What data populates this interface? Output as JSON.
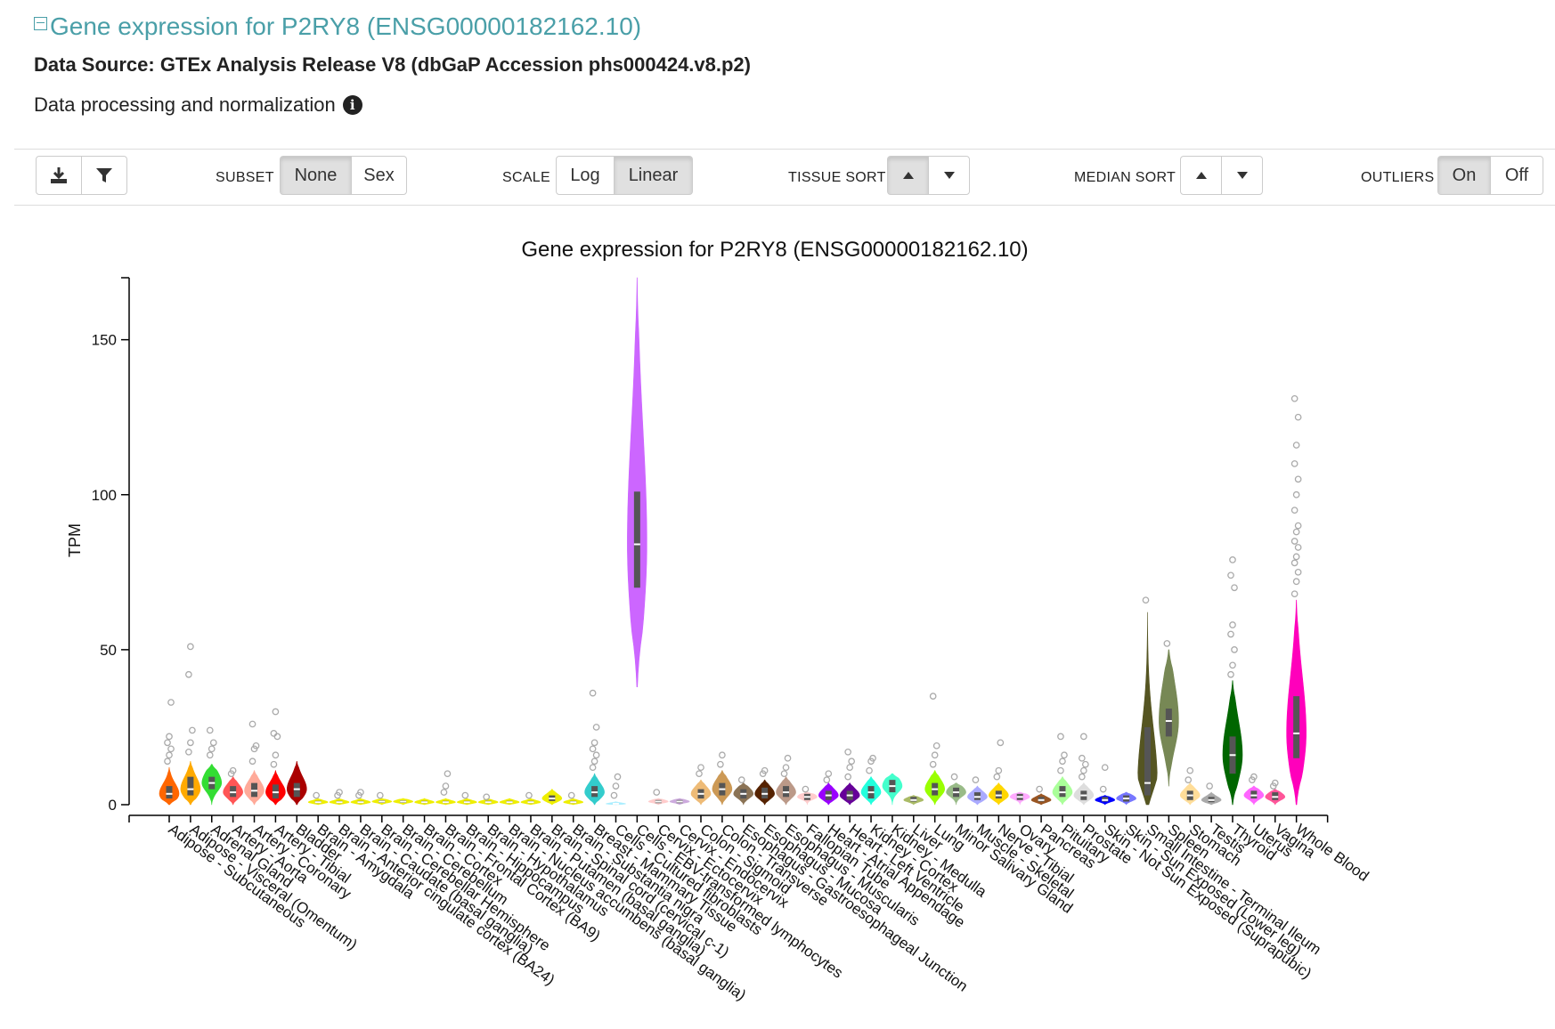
{
  "header": {
    "title": "Gene expression for P2RY8 (ENSG00000182162.10)",
    "source": "Data Source: GTEx Analysis Release V8 (dbGaP Accession phs000424.v8.p2)",
    "processing_label": "Data processing and normalization"
  },
  "toolbar": {
    "subset_label": "SUBSET",
    "subset_options": [
      "None",
      "Sex"
    ],
    "scale_label": "SCALE",
    "scale_options": [
      "Log",
      "Linear"
    ],
    "tissue_sort_label": "TISSUE SORT",
    "median_sort_label": "MEDIAN SORT",
    "outliers_label": "OUTLIERS",
    "outliers_options": [
      "On",
      "Off"
    ]
  },
  "chart_data": {
    "type": "violin",
    "title": "Gene expression for P2RY8 (ENSG00000182162.10)",
    "ylabel": "TPM",
    "ylim": [
      0,
      170
    ],
    "yticks": [
      0,
      50,
      100,
      150
    ],
    "grid": false,
    "series": [
      {
        "tissue": "Adipose - Subcutaneous",
        "color": "#FF6600",
        "median": 3.5,
        "q1": 2,
        "q3": 6,
        "max": 12,
        "outliers": [
          14,
          16,
          18,
          20,
          22,
          33
        ]
      },
      {
        "tissue": "Adipose - Visceral (Omentum)",
        "color": "#FFAA00",
        "median": 5,
        "q1": 3,
        "q3": 9,
        "max": 14,
        "outliers": [
          17,
          20,
          24,
          42,
          51
        ]
      },
      {
        "tissue": "Adrenal Gland",
        "color": "#33DD33",
        "median": 7,
        "q1": 5,
        "q3": 9,
        "max": 13,
        "outliers": [
          16,
          18,
          20,
          24
        ]
      },
      {
        "tissue": "Artery - Aorta",
        "color": "#FF5555",
        "median": 4,
        "q1": 2.5,
        "q3": 6,
        "max": 9,
        "outliers": [
          10,
          11
        ]
      },
      {
        "tissue": "Artery - Coronary",
        "color": "#FFAA99",
        "median": 4.5,
        "q1": 2.5,
        "q3": 7,
        "max": 11,
        "outliers": [
          14,
          18,
          19,
          26
        ]
      },
      {
        "tissue": "Artery - Tibial",
        "color": "#FF0000",
        "median": 4,
        "q1": 2,
        "q3": 6.5,
        "max": 11,
        "outliers": [
          13,
          16,
          22,
          23,
          30
        ]
      },
      {
        "tissue": "Bladder",
        "color": "#AA0000",
        "median": 5,
        "q1": 2.5,
        "q3": 7,
        "max": 14,
        "outliers": []
      },
      {
        "tissue": "Brain - Amygdala",
        "color": "#EEEE00",
        "median": 0.8,
        "q1": 0.5,
        "q3": 1.2,
        "max": 2,
        "outliers": [
          3
        ]
      },
      {
        "tissue": "Brain - Anterior cingulate cortex (BA24)",
        "color": "#EEEE00",
        "median": 0.8,
        "q1": 0.5,
        "q3": 1.2,
        "max": 2,
        "outliers": [
          3,
          4
        ]
      },
      {
        "tissue": "Brain - Caudate (basal ganglia)",
        "color": "#EEEE00",
        "median": 0.8,
        "q1": 0.5,
        "q3": 1.2,
        "max": 2,
        "outliers": [
          3,
          4
        ]
      },
      {
        "tissue": "Brain - Cerebellar Hemisphere",
        "color": "#EEEE00",
        "median": 1,
        "q1": 0.6,
        "q3": 1.4,
        "max": 2,
        "outliers": [
          3
        ]
      },
      {
        "tissue": "Brain - Cerebellum",
        "color": "#EEEE00",
        "median": 1,
        "q1": 0.6,
        "q3": 1.4,
        "max": 2,
        "outliers": []
      },
      {
        "tissue": "Brain - Cortex",
        "color": "#EEEE00",
        "median": 0.8,
        "q1": 0.5,
        "q3": 1.2,
        "max": 2,
        "outliers": []
      },
      {
        "tissue": "Brain - Frontal Cortex (BA9)",
        "color": "#EEEE00",
        "median": 0.8,
        "q1": 0.5,
        "q3": 1.2,
        "max": 2,
        "outliers": [
          4,
          6,
          10
        ]
      },
      {
        "tissue": "Brain - Hippocampus",
        "color": "#EEEE00",
        "median": 0.8,
        "q1": 0.5,
        "q3": 1.2,
        "max": 2,
        "outliers": [
          3
        ]
      },
      {
        "tissue": "Brain - Hypothalamus",
        "color": "#EEEE00",
        "median": 0.8,
        "q1": 0.5,
        "q3": 1.2,
        "max": 2,
        "outliers": [
          2.5
        ]
      },
      {
        "tissue": "Brain - Nucleus accumbens (basal ganglia)",
        "color": "#EEEE00",
        "median": 0.8,
        "q1": 0.5,
        "q3": 1.2,
        "max": 2,
        "outliers": []
      },
      {
        "tissue": "Brain - Putamen (basal ganglia)",
        "color": "#EEEE00",
        "median": 0.8,
        "q1": 0.5,
        "q3": 1.2,
        "max": 2,
        "outliers": [
          3
        ]
      },
      {
        "tissue": "Brain - Spinal cord (cervical c-1)",
        "color": "#EEEE00",
        "median": 2,
        "q1": 1.2,
        "q3": 3,
        "max": 5,
        "outliers": []
      },
      {
        "tissue": "Brain - Substantia nigra",
        "color": "#EEEE00",
        "median": 0.8,
        "q1": 0.5,
        "q3": 1.2,
        "max": 2,
        "outliers": [
          3
        ]
      },
      {
        "tissue": "Breast - Mammary Tissue",
        "color": "#33CCCC",
        "median": 4,
        "q1": 2.5,
        "q3": 6,
        "max": 10,
        "outliers": [
          12,
          14,
          16,
          18,
          20,
          25,
          36
        ]
      },
      {
        "tissue": "Cells - Cultured fibroblasts",
        "color": "#AAEEFF",
        "median": 0.3,
        "q1": 0.2,
        "q3": 0.5,
        "max": 1,
        "outliers": [
          3,
          6,
          9
        ]
      },
      {
        "tissue": "Cells - EBV-transformed lymphocytes",
        "color": "#CC66FF",
        "median": 84,
        "q1": 70,
        "q3": 101,
        "max": 170,
        "min": 38,
        "outliers": []
      },
      {
        "tissue": "Cervix - Ectocervix",
        "color": "#FFCCCC",
        "median": 1,
        "q1": 0.5,
        "q3": 1.5,
        "max": 2,
        "outliers": [
          4
        ]
      },
      {
        "tissue": "Cervix - Endocervix",
        "color": "#CCAADD",
        "median": 1,
        "q1": 0.5,
        "q3": 1.5,
        "max": 2,
        "outliers": []
      },
      {
        "tissue": "Colon - Sigmoid",
        "color": "#EEBB77",
        "median": 3.5,
        "q1": 2,
        "q3": 5,
        "max": 8,
        "outliers": [
          10,
          12
        ]
      },
      {
        "tissue": "Colon - Transverse",
        "color": "#CC9955",
        "median": 5,
        "q1": 3,
        "q3": 7,
        "max": 11,
        "outliers": [
          13,
          16
        ]
      },
      {
        "tissue": "Esophagus - Gastroesophageal Junction",
        "color": "#8B7355",
        "median": 3.5,
        "q1": 2,
        "q3": 5,
        "max": 7,
        "outliers": [
          8
        ]
      },
      {
        "tissue": "Esophagus - Mucosa",
        "color": "#552200",
        "median": 3.5,
        "q1": 2,
        "q3": 5.5,
        "max": 8,
        "outliers": [
          10,
          11
        ]
      },
      {
        "tissue": "Esophagus - Muscularis",
        "color": "#BB9988",
        "median": 4,
        "q1": 2.5,
        "q3": 6,
        "max": 9,
        "outliers": [
          10,
          12,
          15
        ]
      },
      {
        "tissue": "Fallopian Tube",
        "color": "#FFCCCC",
        "median": 2.5,
        "q1": 1.5,
        "q3": 3.5,
        "max": 4,
        "outliers": [
          5
        ]
      },
      {
        "tissue": "Heart - Atrial Appendage",
        "color": "#9900FF",
        "median": 3,
        "q1": 1.5,
        "q3": 4.5,
        "max": 7,
        "outliers": [
          8,
          10
        ]
      },
      {
        "tissue": "Heart - Left Ventricle",
        "color": "#660099",
        "median": 3,
        "q1": 1.5,
        "q3": 4.5,
        "max": 7,
        "outliers": [
          9,
          12,
          14,
          17
        ]
      },
      {
        "tissue": "Kidney - Cortex",
        "color": "#22FFDD",
        "median": 4,
        "q1": 2,
        "q3": 6,
        "max": 9,
        "outliers": [
          11,
          14,
          15
        ]
      },
      {
        "tissue": "Kidney - Medulla",
        "color": "#44FFCC",
        "median": 6,
        "q1": 4,
        "q3": 8,
        "max": 10,
        "outliers": []
      },
      {
        "tissue": "Liver",
        "color": "#AABB66",
        "median": 1.5,
        "q1": 1,
        "q3": 2.5,
        "max": 3,
        "outliers": []
      },
      {
        "tissue": "Lung",
        "color": "#99FF00",
        "median": 5,
        "q1": 3,
        "q3": 7,
        "max": 11,
        "outliers": [
          13,
          16,
          19,
          35
        ]
      },
      {
        "tissue": "Minor Salivary Gland",
        "color": "#99BB88",
        "median": 4,
        "q1": 2.5,
        "q3": 5.5,
        "max": 7,
        "outliers": [
          9
        ]
      },
      {
        "tissue": "Muscle - Skeletal",
        "color": "#AAAAFF",
        "median": 2.5,
        "q1": 1.5,
        "q3": 4,
        "max": 6,
        "outliers": [
          8
        ]
      },
      {
        "tissue": "Nerve - Tibial",
        "color": "#FFD700",
        "median": 3,
        "q1": 2,
        "q3": 4.5,
        "max": 7,
        "outliers": [
          9,
          11,
          20
        ]
      },
      {
        "tissue": "Ovary",
        "color": "#FFAAFF",
        "median": 2.5,
        "q1": 1.5,
        "q3": 3.5,
        "max": 4,
        "outliers": []
      },
      {
        "tissue": "Pancreas",
        "color": "#995522",
        "median": 1.5,
        "q1": 1,
        "q3": 2.5,
        "max": 3.5,
        "outliers": [
          5
        ]
      },
      {
        "tissue": "Pituitary",
        "color": "#AAFF99",
        "median": 4,
        "q1": 2.5,
        "q3": 6,
        "max": 9,
        "outliers": [
          11,
          14,
          16,
          22
        ]
      },
      {
        "tissue": "Prostate",
        "color": "#DDDDDD",
        "median": 3,
        "q1": 1.5,
        "q3": 4.5,
        "max": 7,
        "outliers": [
          9,
          11,
          13,
          15,
          22
        ]
      },
      {
        "tissue": "Skin - Not Sun Exposed (Suprapubic)",
        "color": "#0000FF",
        "median": 1.5,
        "q1": 1,
        "q3": 2.5,
        "max": 3,
        "outliers": [
          5,
          12
        ]
      },
      {
        "tissue": "Skin - Sun Exposed (Lower leg)",
        "color": "#7777FF",
        "median": 2,
        "q1": 1,
        "q3": 3,
        "max": 4,
        "outliers": []
      },
      {
        "tissue": "Small Intestine - Terminal Ileum",
        "color": "#555522",
        "median": 7,
        "q1": 3,
        "q3": 25,
        "max": 62,
        "outliers": [
          66
        ]
      },
      {
        "tissue": "Spleen",
        "color": "#778855",
        "median": 27,
        "q1": 22,
        "q3": 31,
        "max": 50,
        "min": 6,
        "outliers": [
          52
        ]
      },
      {
        "tissue": "Stomach",
        "color": "#FFDD99",
        "median": 3,
        "q1": 1.5,
        "q3": 4.5,
        "max": 7,
        "outliers": [
          8,
          11
        ]
      },
      {
        "tissue": "Testis",
        "color": "#AAAAAA",
        "median": 1.5,
        "q1": 0.8,
        "q3": 2.5,
        "max": 4,
        "outliers": [
          6
        ]
      },
      {
        "tissue": "Thyroid",
        "color": "#006600",
        "median": 16,
        "q1": 10,
        "q3": 22,
        "max": 40,
        "outliers": [
          42,
          45,
          50,
          55,
          58,
          70,
          74,
          79
        ]
      },
      {
        "tissue": "Uterus",
        "color": "#FF66FF",
        "median": 3,
        "q1": 2,
        "q3": 4.5,
        "max": 6,
        "outliers": [
          8,
          9
        ]
      },
      {
        "tissue": "Vagina",
        "color": "#FF5599",
        "median": 2.5,
        "q1": 1.5,
        "q3": 4,
        "max": 5,
        "outliers": [
          6,
          7
        ]
      },
      {
        "tissue": "Whole Blood",
        "color": "#FF00BB",
        "median": 23,
        "q1": 15,
        "q3": 35,
        "max": 66,
        "outliers": [
          68,
          72,
          75,
          78,
          80,
          83,
          85,
          88,
          90,
          95,
          100,
          105,
          110,
          116,
          125,
          131
        ]
      }
    ]
  }
}
